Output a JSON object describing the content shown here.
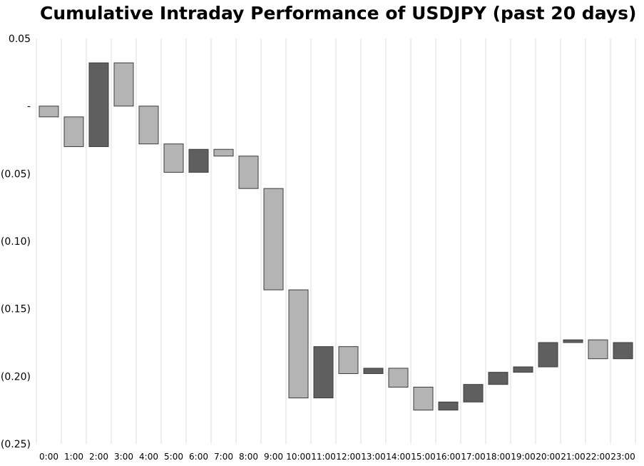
{
  "chart_data": {
    "type": "bar",
    "subtype": "waterfall",
    "title": "Cumulative Intraday Performance of USDJPY (past 20 days)",
    "xlabel": "",
    "ylabel": "",
    "ylim": [
      -0.25,
      0.05
    ],
    "y_ticks": [
      {
        "value": 0.05,
        "label": "0.05"
      },
      {
        "value": 0.0,
        "label": "-"
      },
      {
        "value": -0.05,
        "label": "(0.05)"
      },
      {
        "value": -0.1,
        "label": "(0.10)"
      },
      {
        "value": -0.15,
        "label": "(0.15)"
      },
      {
        "value": -0.2,
        "label": "(0.20)"
      },
      {
        "value": -0.25,
        "label": "(0.25)"
      }
    ],
    "categories": [
      "0:00",
      "1:00",
      "2:00",
      "3:00",
      "4:00",
      "5:00",
      "6:00",
      "7:00",
      "8:00",
      "9:00",
      "10:00",
      "11:00",
      "12:00",
      "13:00",
      "14:00",
      "15:00",
      "16:00",
      "17:00",
      "18:00",
      "19:00",
      "20:00",
      "21:00",
      "22:00",
      "23:00"
    ],
    "bars": [
      {
        "start": 0.0,
        "end": -0.008
      },
      {
        "start": -0.008,
        "end": -0.03
      },
      {
        "start": -0.03,
        "end": 0.032
      },
      {
        "start": 0.032,
        "end": 0.0
      },
      {
        "start": 0.0,
        "end": -0.028
      },
      {
        "start": -0.028,
        "end": -0.049
      },
      {
        "start": -0.049,
        "end": -0.032
      },
      {
        "start": -0.032,
        "end": -0.037
      },
      {
        "start": -0.037,
        "end": -0.061
      },
      {
        "start": -0.061,
        "end": -0.136
      },
      {
        "start": -0.136,
        "end": -0.216
      },
      {
        "start": -0.216,
        "end": -0.178
      },
      {
        "start": -0.178,
        "end": -0.198
      },
      {
        "start": -0.198,
        "end": -0.194
      },
      {
        "start": -0.194,
        "end": -0.208
      },
      {
        "start": -0.208,
        "end": -0.225
      },
      {
        "start": -0.225,
        "end": -0.219
      },
      {
        "start": -0.219,
        "end": -0.206
      },
      {
        "start": -0.206,
        "end": -0.197
      },
      {
        "start": -0.197,
        "end": -0.193
      },
      {
        "start": -0.193,
        "end": -0.175
      },
      {
        "start": -0.175,
        "end": -0.173
      },
      {
        "start": -0.173,
        "end": -0.187
      },
      {
        "start": -0.187,
        "end": -0.175
      }
    ],
    "colors": {
      "decrease": "#b4b4b4",
      "increase": "#5f5f5f",
      "bar_stroke": "#3c3c3c",
      "grid": "#dcdcdc"
    },
    "grid": "vertical"
  }
}
